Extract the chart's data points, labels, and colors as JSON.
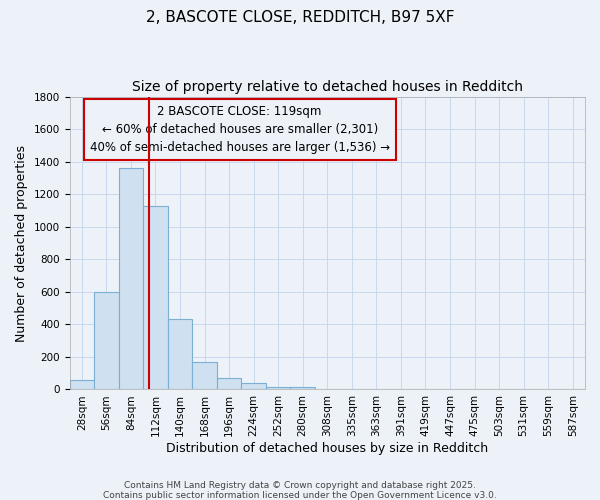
{
  "title1": "2, BASCOTE CLOSE, REDDITCH, B97 5XF",
  "title2": "Size of property relative to detached houses in Redditch",
  "xlabel": "Distribution of detached houses by size in Redditch",
  "ylabel": "Number of detached properties",
  "categories": [
    "28sqm",
    "56sqm",
    "84sqm",
    "112sqm",
    "140sqm",
    "168sqm",
    "196sqm",
    "224sqm",
    "252sqm",
    "280sqm",
    "308sqm",
    "335sqm",
    "363sqm",
    "391sqm",
    "419sqm",
    "447sqm",
    "475sqm",
    "503sqm",
    "531sqm",
    "559sqm",
    "587sqm"
  ],
  "values": [
    56,
    601,
    1360,
    1130,
    430,
    170,
    68,
    40,
    14,
    13,
    0,
    0,
    0,
    0,
    0,
    0,
    0,
    0,
    0,
    0,
    0
  ],
  "bar_color": "#cfe0f0",
  "bar_edge_color": "#7bafd4",
  "bar_edge_width": 0.8,
  "property_size_bin": 3,
  "property_label": "2 BASCOTE CLOSE: 119sqm",
  "ann_line1": "← 60% of detached houses are smaller (2,301)",
  "ann_line2": "40% of semi-detached houses are larger (1,536) →",
  "red_line_color": "#cc0000",
  "ann_box_color": "#cc0000",
  "ylim": [
    0,
    1800
  ],
  "yticks": [
    0,
    200,
    400,
    600,
    800,
    1000,
    1200,
    1400,
    1600,
    1800
  ],
  "bg_color": "#edf2f8",
  "grid_color": "#c8d8ec",
  "footer1": "Contains HM Land Registry data © Crown copyright and database right 2025.",
  "footer2": "Contains public sector information licensed under the Open Government Licence v3.0.",
  "title_fontsize": 11,
  "subtitle_fontsize": 10,
  "axis_label_fontsize": 9,
  "tick_fontsize": 7.5,
  "annotation_fontsize": 8.5,
  "footer_fontsize": 6.5
}
